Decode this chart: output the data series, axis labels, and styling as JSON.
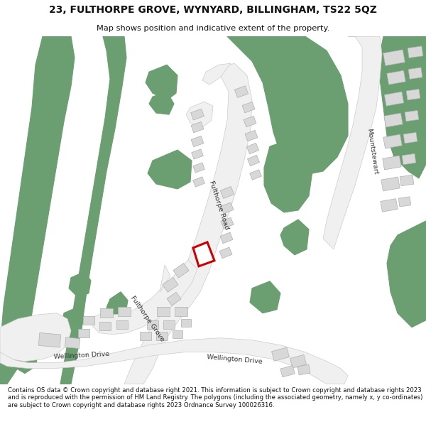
{
  "title": "23, FULTHORPE GROVE, WYNYARD, BILLINGHAM, TS22 5QZ",
  "subtitle": "Map shows position and indicative extent of the property.",
  "footer": "Contains OS data © Crown copyright and database right 2021. This information is subject to Crown copyright and database rights 2023 and is reproduced with the permission of HM Land Registry. The polygons (including the associated geometry, namely x, y co-ordinates) are subject to Crown copyright and database rights 2023 Ordnance Survey 100026316.",
  "bg_color": "#bed8b0",
  "road_color": "#f0f0f0",
  "road_edge": "#cccccc",
  "building_color": "#d8d8d8",
  "building_edge": "#b0b0b0",
  "dark_green": "#6b9e70",
  "highlight_color": "#cc0000",
  "text_color": "#333333",
  "header_bg": "#ffffff",
  "footer_bg": "#ffffff"
}
